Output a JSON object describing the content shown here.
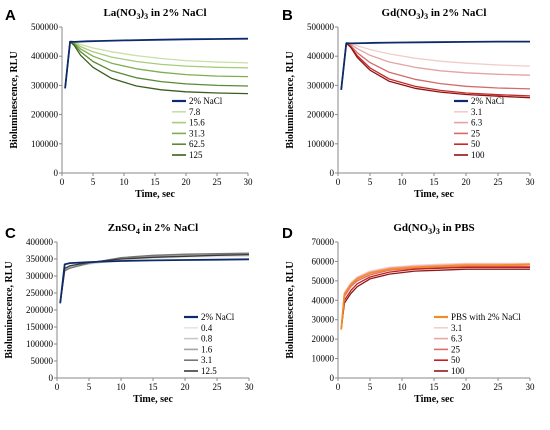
{
  "chart_data": [
    {
      "type": "line",
      "panel_label": "A",
      "title": "La(NO3)3 in 2% NaCl",
      "title_parts": [
        "La(NO",
        "3",
        ")",
        "3",
        " in 2% NaCl"
      ],
      "xlabel": "Time, sec",
      "ylabel": "Bioluminescence, RLU",
      "xlim": [
        0,
        30
      ],
      "ylim": [
        0,
        500000
      ],
      "x_ticks": [
        0,
        5,
        10,
        15,
        20,
        25,
        30
      ],
      "y_ticks": [
        0,
        100000,
        200000,
        300000,
        400000,
        500000
      ],
      "legend_position": "lower-right",
      "series": [
        {
          "name": "2% NaCl",
          "color": "#0d2a6b",
          "x": [
            0.5,
            1.3,
            2,
            4,
            6,
            10,
            15,
            20,
            25,
            30
          ],
          "y": [
            290000,
            450000,
            449000,
            451000,
            452000,
            454000,
            456000,
            458000,
            459000,
            460000
          ]
        },
        {
          "name": "7.8",
          "color": "#c9dfa5",
          "x": [
            0.5,
            1.3,
            2,
            3,
            5,
            8,
            12,
            16,
            20,
            25,
            30
          ],
          "y": [
            290000,
            450000,
            448000,
            440000,
            428000,
            415000,
            402000,
            392000,
            385000,
            380000,
            377000
          ]
        },
        {
          "name": "15.6",
          "color": "#a7cc7a",
          "x": [
            0.5,
            1.3,
            2,
            3,
            5,
            8,
            12,
            16,
            20,
            25,
            30
          ],
          "y": [
            290000,
            450000,
            446000,
            433000,
            415000,
            397000,
            382000,
            372000,
            366000,
            362000,
            360000
          ]
        },
        {
          "name": "31.3",
          "color": "#7fae4f",
          "x": [
            0.5,
            1.3,
            2,
            3,
            5,
            8,
            12,
            16,
            20,
            25,
            30
          ],
          "y": [
            290000,
            450000,
            443000,
            425000,
            400000,
            376000,
            357000,
            345000,
            337000,
            332000,
            330000
          ]
        },
        {
          "name": "62.5",
          "color": "#5a8a35",
          "x": [
            0.5,
            1.3,
            2,
            3,
            5,
            8,
            12,
            16,
            20,
            25,
            30
          ],
          "y": [
            290000,
            450000,
            440000,
            415000,
            382000,
            350000,
            326000,
            313000,
            305000,
            300000,
            298000
          ]
        },
        {
          "name": "125",
          "color": "#3a5e1f",
          "x": [
            0.5,
            1.3,
            2,
            3,
            5,
            8,
            12,
            16,
            20,
            25,
            30
          ],
          "y": [
            290000,
            450000,
            436000,
            403000,
            362000,
            324000,
            298000,
            285000,
            278000,
            274000,
            272000
          ]
        }
      ]
    },
    {
      "type": "line",
      "panel_label": "B",
      "title": "Gd(NO3)3 in 2% NaCl",
      "title_parts": [
        "Gd(NO",
        "3",
        ")",
        "3",
        " in 2% NaCl"
      ],
      "xlabel": "Time, sec",
      "ylabel": "Bioluminescence, RLU",
      "xlim": [
        0,
        30
      ],
      "ylim": [
        0,
        500000
      ],
      "x_ticks": [
        0,
        5,
        10,
        15,
        20,
        25,
        30
      ],
      "y_ticks": [
        0,
        100000,
        200000,
        300000,
        400000,
        500000
      ],
      "legend_position": "lower-right",
      "series": [
        {
          "name": "2% NaCl",
          "color": "#0d2a6b",
          "x": [
            0.5,
            1.3,
            2,
            4,
            6,
            10,
            15,
            20,
            25,
            30
          ],
          "y": [
            285000,
            445000,
            444000,
            445000,
            446000,
            447000,
            448000,
            449000,
            450000,
            450000
          ]
        },
        {
          "name": "3.1",
          "color": "#f1cccc",
          "x": [
            0.5,
            1.3,
            2,
            3,
            5,
            8,
            12,
            16,
            20,
            25,
            30
          ],
          "y": [
            285000,
            445000,
            443000,
            436000,
            423000,
            408000,
            393000,
            383000,
            376000,
            370000,
            366000
          ]
        },
        {
          "name": "6.3",
          "color": "#e3a3a3",
          "x": [
            0.5,
            1.3,
            2,
            3,
            5,
            8,
            12,
            16,
            20,
            25,
            30
          ],
          "y": [
            285000,
            445000,
            440000,
            426000,
            403000,
            380000,
            362000,
            350000,
            343000,
            338000,
            335000
          ]
        },
        {
          "name": "25",
          "color": "#d46b6b",
          "x": [
            0.5,
            1.3,
            2,
            3,
            5,
            8,
            12,
            16,
            20,
            25,
            30
          ],
          "y": [
            285000,
            445000,
            436000,
            412000,
            378000,
            345000,
            321000,
            306000,
            297000,
            291000,
            288000
          ]
        },
        {
          "name": "50",
          "color": "#c52a2a",
          "x": [
            0.5,
            1.3,
            2,
            3,
            5,
            8,
            12,
            16,
            20,
            25,
            30
          ],
          "y": [
            285000,
            445000,
            432000,
            402000,
            360000,
            322000,
            297000,
            283000,
            274000,
            268000,
            264000
          ]
        },
        {
          "name": "100",
          "color": "#8e1414",
          "x": [
            0.5,
            1.3,
            2,
            3,
            5,
            8,
            12,
            16,
            20,
            25,
            30
          ],
          "y": [
            285000,
            445000,
            430000,
            396000,
            352000,
            314000,
            290000,
            277000,
            269000,
            263000,
            258000
          ]
        }
      ]
    },
    {
      "type": "line",
      "panel_label": "C",
      "title": "ZnSO4 in 2% NaCl",
      "title_parts": [
        "ZnSO",
        "4",
        " in 2% NaCl"
      ],
      "xlabel": "Time, sec",
      "ylabel": "Bioluminescence, RLU",
      "xlim": [
        0,
        30
      ],
      "ylim": [
        0,
        400000
      ],
      "x_ticks": [
        0,
        5,
        10,
        15,
        20,
        25,
        30
      ],
      "y_ticks": [
        0,
        50000,
        100000,
        150000,
        200000,
        250000,
        300000,
        350000,
        400000
      ],
      "legend_position": "lower-right",
      "series": [
        {
          "name": "2% NaCl",
          "color": "#0d2a6b",
          "x": [
            0.5,
            1.2,
            2,
            5,
            10,
            15,
            20,
            25,
            30
          ],
          "y": [
            220000,
            334000,
            338000,
            341000,
            344000,
            346000,
            347000,
            348000,
            349000
          ]
        },
        {
          "name": "0.4",
          "color": "#e6e6e6",
          "x": [
            0.5,
            1.2,
            2,
            5,
            10,
            15,
            20,
            25,
            30
          ],
          "y": [
            220000,
            320000,
            326000,
            335000,
            346000,
            352000,
            355000,
            357000,
            358000
          ]
        },
        {
          "name": "0.8",
          "color": "#c8c8c8",
          "x": [
            0.5,
            1.2,
            2,
            5,
            10,
            15,
            20,
            25,
            30
          ],
          "y": [
            220000,
            318000,
            325000,
            336000,
            349000,
            355000,
            358000,
            360000,
            361000
          ]
        },
        {
          "name": "1.6",
          "color": "#a3a3a3",
          "x": [
            0.5,
            1.2,
            2,
            5,
            10,
            15,
            20,
            25,
            30
          ],
          "y": [
            220000,
            316000,
            324000,
            337000,
            352000,
            358000,
            362000,
            364000,
            365000
          ]
        },
        {
          "name": "3.1",
          "color": "#767676",
          "x": [
            0.5,
            1.2,
            2,
            5,
            10,
            15,
            20,
            25,
            30
          ],
          "y": [
            220000,
            315000,
            323000,
            338000,
            354000,
            361000,
            364000,
            366000,
            367000
          ]
        },
        {
          "name": "12.5",
          "color": "#3a3a3a",
          "x": [
            0.5,
            1.2,
            2,
            5,
            10,
            15,
            20,
            25,
            30
          ],
          "y": [
            220000,
            322000,
            330000,
            340000,
            350000,
            355000,
            358000,
            361000,
            363000
          ]
        }
      ]
    },
    {
      "type": "line",
      "panel_label": "D",
      "title": "Gd(NO3)3 in PBS",
      "title_parts": [
        "Gd(NO",
        "3",
        ")",
        "3",
        " in PBS"
      ],
      "xlabel": "Time, sec",
      "ylabel": "Bioluminescence, RLU",
      "xlim": [
        0,
        30
      ],
      "ylim": [
        0,
        70000
      ],
      "x_ticks": [
        0,
        5,
        10,
        15,
        20,
        25,
        30
      ],
      "y_ticks": [
        0,
        10000,
        20000,
        30000,
        40000,
        50000,
        60000,
        70000
      ],
      "legend_position": "lower-right",
      "series": [
        {
          "name": "PBS with 2% NaCl",
          "color": "#f28c28",
          "x": [
            0.5,
            1,
            2,
            3,
            5,
            8,
            12,
            16,
            20,
            25,
            30
          ],
          "y": [
            25000,
            43000,
            48000,
            51000,
            54000,
            56000,
            57000,
            57500,
            58000,
            58000,
            58500
          ]
        },
        {
          "name": "3.1",
          "color": "#f6cdcd",
          "x": [
            0.5,
            1,
            2,
            3,
            5,
            8,
            12,
            16,
            20,
            25,
            30
          ],
          "y": [
            25000,
            44000,
            49000,
            52000,
            55000,
            57000,
            58000,
            58500,
            59000,
            59000,
            59000
          ]
        },
        {
          "name": "6.3",
          "color": "#eaa5a5",
          "x": [
            0.5,
            1,
            2,
            3,
            5,
            8,
            12,
            16,
            20,
            25,
            30
          ],
          "y": [
            25000,
            43500,
            48500,
            51500,
            54500,
            56500,
            57500,
            58000,
            58500,
            58500,
            58500
          ]
        },
        {
          "name": "25",
          "color": "#dd6a6a",
          "x": [
            0.5,
            1,
            2,
            3,
            5,
            8,
            12,
            16,
            20,
            25,
            30
          ],
          "y": [
            25000,
            42000,
            47000,
            50000,
            53000,
            55500,
            56500,
            57000,
            57500,
            57500,
            57500
          ]
        },
        {
          "name": "50",
          "color": "#c41e1e",
          "x": [
            0.5,
            1,
            2,
            3,
            5,
            8,
            12,
            16,
            20,
            25,
            30
          ],
          "y": [
            25000,
            40000,
            45000,
            48500,
            52000,
            54500,
            56000,
            56500,
            57000,
            57000,
            57000
          ]
        },
        {
          "name": "100",
          "color": "#8b1a1a",
          "x": [
            0.5,
            1,
            2,
            3,
            5,
            8,
            12,
            16,
            20,
            25,
            30
          ],
          "y": [
            25000,
            38500,
            43500,
            47000,
            51000,
            53500,
            55000,
            55500,
            56000,
            56000,
            56000
          ]
        }
      ]
    }
  ]
}
